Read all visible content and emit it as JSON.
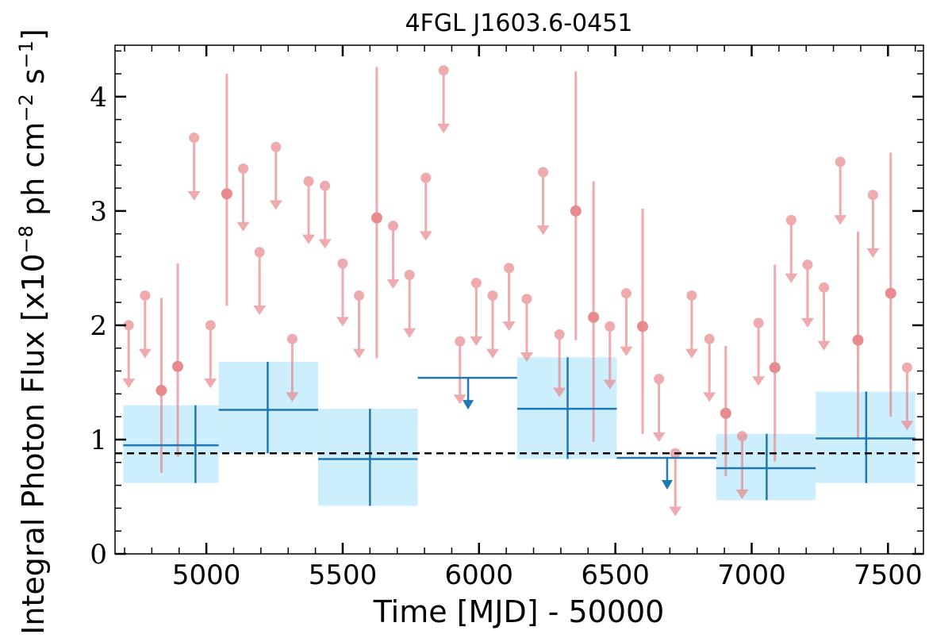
{
  "chart_data": {
    "type": "scatter",
    "title": "4FGL J1603.6-0451",
    "xlabel": "Time [MJD] - 50000",
    "ylabel": "Integral Photon Flux [x10",
    "ylabel_exp": "−8",
    "ylabel_mid": " ph cm",
    "ylabel_exp2": "−2",
    "ylabel_end": " s",
    "ylabel_exp3": "−1",
    "ylabel_close": "]",
    "xlim": [
      4665,
      7630
    ],
    "ylim": [
      0,
      4.45
    ],
    "x_ticks": [
      5000,
      5500,
      6000,
      6500,
      7000,
      7500
    ],
    "x_tick_labels": [
      "5000",
      "5500",
      "6000",
      "6500",
      "7000",
      "7500"
    ],
    "y_ticks": [
      0,
      1,
      2,
      3,
      4
    ],
    "y_tick_labels": [
      "0",
      "1",
      "2",
      "3",
      "4"
    ],
    "reference_line": {
      "y": 0.88,
      "style": "dashed",
      "color": "#000000"
    },
    "grid": false,
    "series": [
      {
        "kind": "coarse-bins",
        "color": "#1f77b4",
        "band_color": "#cdeefc",
        "detections": [
          {
            "x": 4960,
            "x0": 4695,
            "x1": 5045,
            "y": 0.95,
            "lo": 0.62,
            "hi": 1.3
          },
          {
            "x": 5225,
            "x0": 5045,
            "x1": 5410,
            "y": 1.26,
            "lo": 0.88,
            "hi": 1.68
          },
          {
            "x": 5600,
            "x0": 5410,
            "x1": 5775,
            "y": 0.83,
            "lo": 0.42,
            "hi": 1.27
          },
          {
            "x": 6325,
            "x0": 6140,
            "x1": 6505,
            "y": 1.27,
            "lo": 0.83,
            "hi": 1.72
          },
          {
            "x": 7055,
            "x0": 6870,
            "x1": 7235,
            "y": 0.75,
            "lo": 0.47,
            "hi": 1.05
          },
          {
            "x": 7420,
            "x0": 7235,
            "x1": 7600,
            "y": 1.01,
            "lo": 0.62,
            "hi": 1.42
          }
        ],
        "upper_limits": [
          {
            "x": 5960,
            "x0": 5775,
            "x1": 6140,
            "y": 1.54
          },
          {
            "x": 6690,
            "x0": 6505,
            "x1": 6870,
            "y": 0.84
          }
        ]
      },
      {
        "kind": "fine-bins",
        "color": "#e8878b",
        "detections": [
          {
            "x": 4835,
            "y": 1.43,
            "lo": 0.71,
            "hi": 2.24
          },
          {
            "x": 4895,
            "y": 1.64,
            "lo": 0.85,
            "hi": 2.54
          },
          {
            "x": 5075,
            "y": 3.15,
            "lo": 2.17,
            "hi": 4.2
          },
          {
            "x": 5625,
            "y": 2.94,
            "lo": 1.71,
            "hi": 4.26
          },
          {
            "x": 6355,
            "y": 3.0,
            "lo": 1.87,
            "hi": 4.22
          },
          {
            "x": 6420,
            "y": 2.07,
            "lo": 0.98,
            "hi": 3.26
          },
          {
            "x": 6600,
            "y": 1.99,
            "lo": 1.05,
            "hi": 3.02
          },
          {
            "x": 6905,
            "y": 1.23,
            "lo": 0.68,
            "hi": 1.82
          },
          {
            "x": 7085,
            "y": 1.63,
            "lo": 0.81,
            "hi": 2.53
          },
          {
            "x": 7390,
            "y": 1.87,
            "lo": 1.01,
            "hi": 2.82
          },
          {
            "x": 7510,
            "y": 2.28,
            "lo": 1.2,
            "hi": 3.51
          }
        ],
        "upper_limits": [
          {
            "x": 4715,
            "y": 2.0
          },
          {
            "x": 4775,
            "y": 2.26
          },
          {
            "x": 4955,
            "y": 3.64
          },
          {
            "x": 5015,
            "y": 2.0
          },
          {
            "x": 5135,
            "y": 3.37
          },
          {
            "x": 5195,
            "y": 2.64
          },
          {
            "x": 5255,
            "y": 3.56
          },
          {
            "x": 5315,
            "y": 1.88
          },
          {
            "x": 5375,
            "y": 3.26
          },
          {
            "x": 5435,
            "y": 3.22
          },
          {
            "x": 5500,
            "y": 2.54
          },
          {
            "x": 5560,
            "y": 2.26
          },
          {
            "x": 5685,
            "y": 2.87
          },
          {
            "x": 5745,
            "y": 2.44
          },
          {
            "x": 5805,
            "y": 3.29
          },
          {
            "x": 5870,
            "y": 4.23
          },
          {
            "x": 5930,
            "y": 1.86
          },
          {
            "x": 5990,
            "y": 2.37
          },
          {
            "x": 6050,
            "y": 2.26
          },
          {
            "x": 6110,
            "y": 2.5
          },
          {
            "x": 6175,
            "y": 2.23
          },
          {
            "x": 6235,
            "y": 3.34
          },
          {
            "x": 6295,
            "y": 1.92
          },
          {
            "x": 6480,
            "y": 1.99
          },
          {
            "x": 6540,
            "y": 2.28
          },
          {
            "x": 6660,
            "y": 1.53
          },
          {
            "x": 6720,
            "y": 0.88
          },
          {
            "x": 6780,
            "y": 2.26
          },
          {
            "x": 6845,
            "y": 1.88
          },
          {
            "x": 6965,
            "y": 1.03
          },
          {
            "x": 7025,
            "y": 2.02
          },
          {
            "x": 7145,
            "y": 2.92
          },
          {
            "x": 7205,
            "y": 2.53
          },
          {
            "x": 7265,
            "y": 2.33
          },
          {
            "x": 7325,
            "y": 3.43
          },
          {
            "x": 7445,
            "y": 3.14
          },
          {
            "x": 7570,
            "y": 1.63
          }
        ]
      }
    ]
  }
}
